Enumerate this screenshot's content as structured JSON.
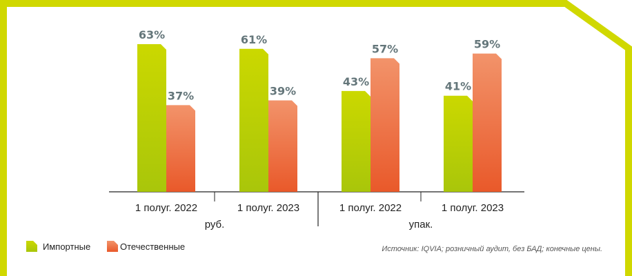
{
  "chart_data": {
    "type": "bar",
    "title": "",
    "xlabel": "",
    "ylabel": "",
    "ylim": [
      0,
      63
    ],
    "groups": [
      "руб.",
      "упак."
    ],
    "categories": [
      "1 полуг. 2022",
      "1 полуг. 2023",
      "1 полуг. 2022",
      "1 полуг. 2023"
    ],
    "series": [
      {
        "name": "Импортные",
        "values": [
          63,
          61,
          43,
          41
        ],
        "labels": [
          "63%",
          "61%",
          "43%",
          "41%"
        ]
      },
      {
        "name": "Отечественные",
        "values": [
          37,
          39,
          57,
          59
        ],
        "labels": [
          "37%",
          "39%",
          "57%",
          "59%"
        ]
      }
    ],
    "legend_position": "bottom-left"
  },
  "colors": {
    "border": "#d0d800",
    "import_top": "#cbd800",
    "import_bottom": "#a9c60a",
    "domestic_top": "#f2936a",
    "domestic_bottom": "#e9592a",
    "value_label": "#64767a",
    "axis": "#222222"
  },
  "source": "Источник: IQVIA; розничный аудит, без БАД; конечные цены."
}
